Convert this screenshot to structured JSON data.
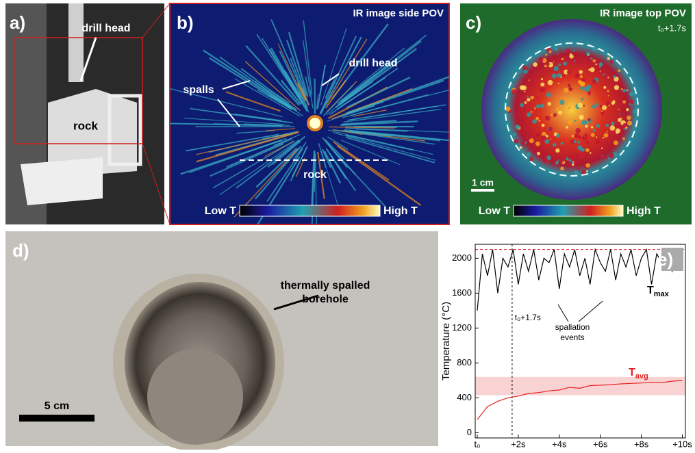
{
  "panels": {
    "a": {
      "label": "a)",
      "drill_head": "drill head",
      "rock": "rock"
    },
    "b": {
      "label": "b)",
      "title": "IR image side POV",
      "spalls": "spalls",
      "drill_head": "drill head",
      "rock": "rock",
      "low": "Low T",
      "high": "High T"
    },
    "c": {
      "label": "c)",
      "title": "IR image top POV",
      "time": "t₀+1.7s",
      "scale": "1 cm",
      "low": "Low T",
      "high": "High T"
    },
    "d": {
      "label": "d)",
      "annotation": [
        "thermally spalled",
        "borehole"
      ],
      "scale": "5 cm"
    }
  },
  "chart_data": {
    "type": "line",
    "label": "e)",
    "y_label": "Temperature (°C)",
    "xlim": [
      -0.1,
      10.15
    ],
    "ylim": [
      -60,
      2160
    ],
    "xticks": [
      {
        "value": 0,
        "label": "t₀"
      },
      {
        "value": 2,
        "label": "+2s"
      },
      {
        "value": 4,
        "label": "+4s"
      },
      {
        "value": 6,
        "label": "+6s"
      },
      {
        "value": 8,
        "label": "+8s"
      },
      {
        "value": 10,
        "label": "+10s"
      }
    ],
    "yticks": [
      0,
      400,
      800,
      1200,
      1600,
      2000
    ],
    "reference_line": 2100,
    "band": [
      430,
      640
    ],
    "marker_x": 1.7,
    "marker_label": "t₀+1.7s",
    "annotation": [
      "spallation",
      "events"
    ],
    "series": [
      {
        "name": {
          "main": "T",
          "sub": "max"
        },
        "color": "#000000",
        "x": [
          0,
          0.25,
          0.5,
          0.75,
          1,
          1.25,
          1.5,
          1.75,
          2,
          2.25,
          2.5,
          2.75,
          3,
          3.25,
          3.5,
          3.75,
          4,
          4.25,
          4.5,
          4.75,
          5,
          5.25,
          5.5,
          5.75,
          6,
          6.25,
          6.5,
          6.75,
          7,
          7.25,
          7.5,
          7.75,
          8,
          8.25,
          8.5,
          8.75,
          9,
          9.25,
          9.5,
          9.75,
          10
        ],
        "values": [
          1400,
          2050,
          1800,
          2100,
          1600,
          2000,
          1900,
          2100,
          1700,
          2050,
          1850,
          2100,
          1750,
          2000,
          1950,
          2100,
          1650,
          2050,
          1900,
          2100,
          1800,
          2000,
          1700,
          2100,
          1950,
          1850,
          2100,
          1750,
          2050,
          1900,
          2100,
          1800,
          2000,
          2100,
          1700,
          2050,
          1950,
          2100,
          1850,
          2000,
          2100
        ]
      },
      {
        "name": {
          "main": "T",
          "sub": "avg"
        },
        "color": "#e8201c",
        "x": [
          0,
          0.5,
          1,
          1.5,
          2,
          2.5,
          3,
          3.5,
          4,
          4.5,
          5,
          5.5,
          6,
          6.5,
          7,
          7.5,
          8,
          8.5,
          9,
          9.5,
          10
        ],
        "values": [
          150,
          300,
          360,
          400,
          420,
          450,
          460,
          480,
          490,
          520,
          510,
          540,
          545,
          550,
          560,
          565,
          570,
          580,
          575,
          590,
          600
        ]
      }
    ]
  }
}
